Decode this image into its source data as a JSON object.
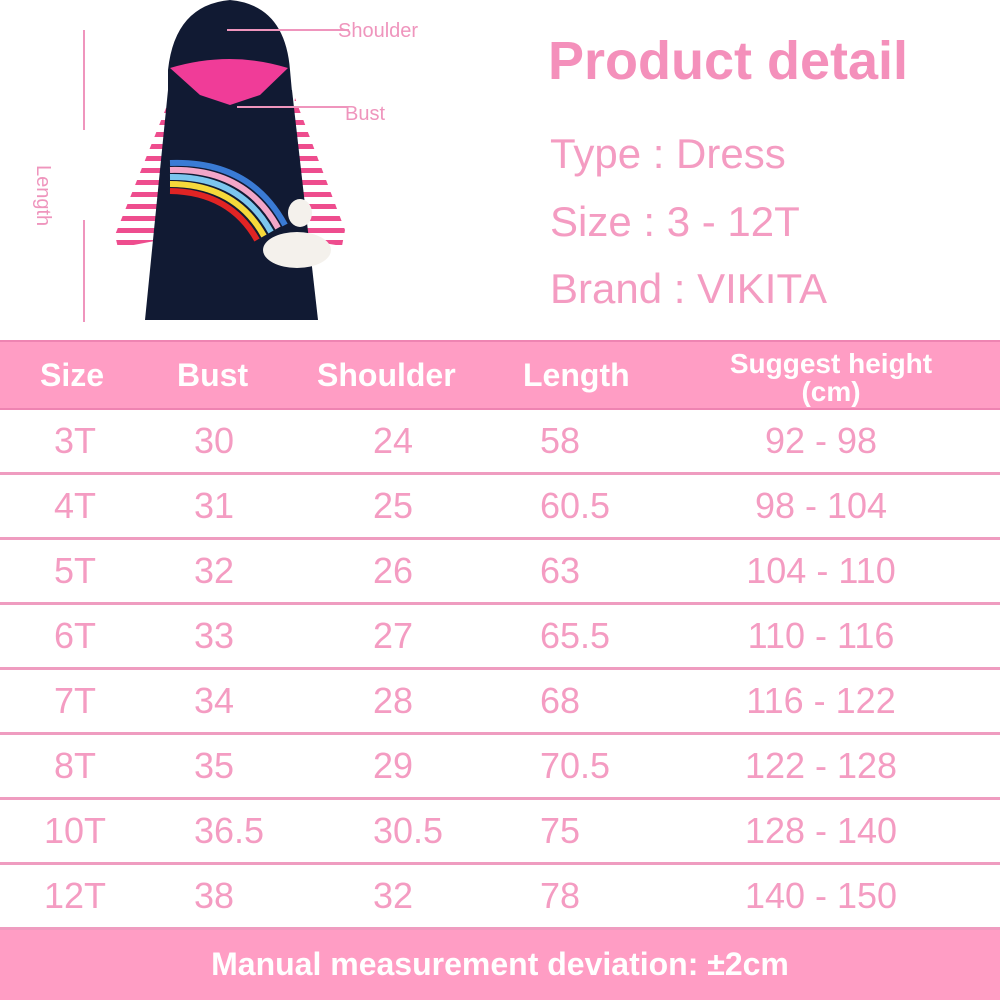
{
  "diagram": {
    "labels": {
      "shoulder": "Shoulder",
      "bust": "Bust",
      "length": "Length"
    },
    "colors": {
      "dress": "#111a33",
      "hood_lining": "#f03c98",
      "stripe": "#ee4d8e"
    }
  },
  "product": {
    "title": "Product detail",
    "type": "Type : Dress",
    "size": "Size : 3 - 12T",
    "brand": "Brand : VIKITA"
  },
  "table": {
    "headers": [
      "Size",
      "Bust",
      "Shoulder",
      "Length",
      "Suggest height",
      "(cm)"
    ],
    "rows": [
      [
        "3T",
        "30",
        "24",
        "58",
        "92 - 98"
      ],
      [
        "4T",
        "31",
        "25",
        "60.5",
        "98 - 104"
      ],
      [
        "5T",
        "32",
        "26",
        "63",
        "104 - 110"
      ],
      [
        "6T",
        "33",
        "27",
        "65.5",
        "110 - 116"
      ],
      [
        "7T",
        "34",
        "28",
        "68",
        "116 - 122"
      ],
      [
        "8T",
        "35",
        "29",
        "70.5",
        "122 - 128"
      ],
      [
        "10T",
        "36.5",
        "30.5",
        "75",
        "128 - 140"
      ],
      [
        "12T",
        "38",
        "32",
        "78",
        "140 - 150"
      ]
    ]
  },
  "footer": "Manual measurement deviation: ±2cm",
  "colors": {
    "accent": "#ff9dc4",
    "text": "#f49cc2"
  }
}
